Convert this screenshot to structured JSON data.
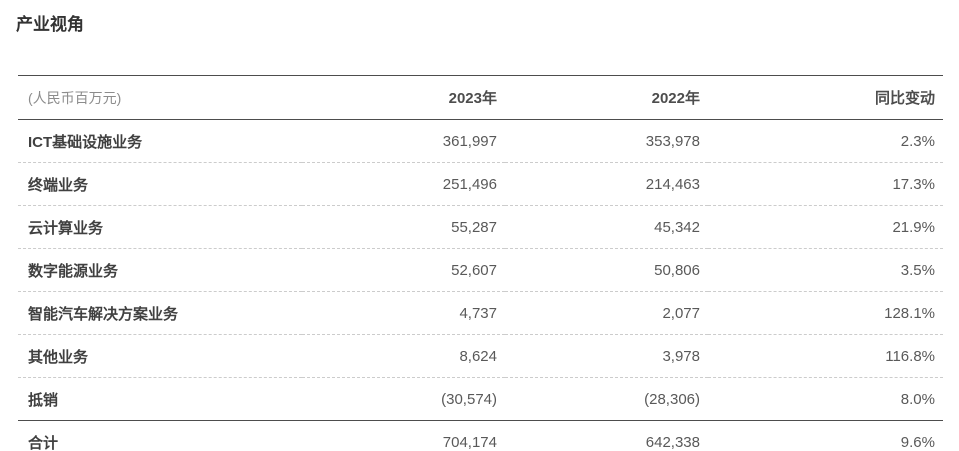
{
  "page": {
    "title": "产业视角"
  },
  "table": {
    "unit_label": "(人民币百万元)",
    "columns": {
      "y2023": "2023年",
      "y2022": "2022年",
      "yoy": "同比变动"
    },
    "rows": [
      {
        "label": "ICT基础设施业务",
        "y2023": "361,997",
        "y2022": "353,978",
        "yoy": "2.3%"
      },
      {
        "label": "终端业务",
        "y2023": "251,496",
        "y2022": "214,463",
        "yoy": "17.3%"
      },
      {
        "label": "云计算业务",
        "y2023": "55,287",
        "y2022": "45,342",
        "yoy": "21.9%"
      },
      {
        "label": "数字能源业务",
        "y2023": "52,607",
        "y2022": "50,806",
        "yoy": "3.5%"
      },
      {
        "label": "智能汽车解决方案业务",
        "y2023": "4,737",
        "y2022": "2,077",
        "yoy": "128.1%"
      },
      {
        "label": "其他业务",
        "y2023": "8,624",
        "y2022": "3,978",
        "yoy": "116.8%"
      },
      {
        "label": "抵销",
        "y2023": "(30,574)",
        "y2022": "(28,306)",
        "yoy": "8.0%"
      },
      {
        "label": "合计",
        "y2023": "704,174",
        "y2022": "642,338",
        "yoy": "9.6%"
      }
    ],
    "colors": {
      "title_text": "#333333",
      "header_text": "#4d4d4d",
      "label_text": "#404040",
      "value_text": "#595959",
      "unit_text": "#8c8c8c",
      "solid_rule": "#4d4d4d",
      "dashed_rule": "#cccccc",
      "background": "#ffffff"
    }
  }
}
